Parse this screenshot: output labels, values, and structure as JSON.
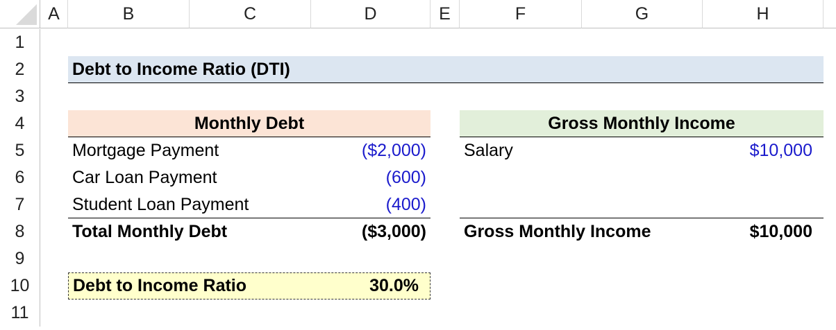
{
  "columns": [
    "A",
    "B",
    "C",
    "D",
    "E",
    "F",
    "G",
    "H"
  ],
  "rows": [
    "1",
    "2",
    "3",
    "4",
    "5",
    "6",
    "7",
    "8",
    "9",
    "10",
    "11"
  ],
  "title": "Debt to Income Ratio (DTI)",
  "debt": {
    "header": "Monthly Debt",
    "items": [
      {
        "label": "Mortgage Payment",
        "value": "($2,000)"
      },
      {
        "label": "Car Loan Payment",
        "value": "(600)"
      },
      {
        "label": "Student Loan Payment",
        "value": "(400)"
      }
    ],
    "total_label": "Total Monthly Debt",
    "total_value": "($3,000)"
  },
  "income": {
    "header": "Gross Monthly Income",
    "items": [
      {
        "label": "Salary",
        "value": "$10,000"
      }
    ],
    "total_label": "Gross Monthly Income",
    "total_value": "$10,000"
  },
  "ratio": {
    "label": "Debt to Income Ratio",
    "value": "30.0%"
  },
  "colors": {
    "title_fill": "#dce6f1",
    "debt_fill": "#fce4d6",
    "income_fill": "#e2efda",
    "ratio_fill": "#ffffcc",
    "input_blue": "#1a1acc"
  }
}
